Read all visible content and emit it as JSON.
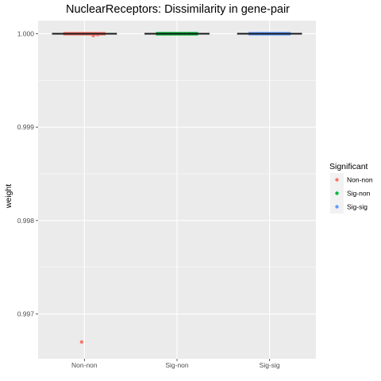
{
  "chart_data": {
    "type": "box",
    "title": "NuclearReceptors: Dissimilarity in gene-pair",
    "xlabel": "",
    "ylabel": "weight",
    "categories": [
      "Non-non",
      "Sig-non",
      "Sig-sig"
    ],
    "ylim": [
      0.99652,
      1.00014
    ],
    "yticks": [
      0.997,
      0.998,
      0.999,
      1.0
    ],
    "ytick_labels": [
      "0.997",
      "0.998",
      "0.999",
      "1.000"
    ],
    "grid": true,
    "legend": {
      "title": "Significant",
      "position": "right",
      "items": [
        {
          "label": "Non-non",
          "color": "#F8766D"
        },
        {
          "label": "Sig-non",
          "color": "#00BA38"
        },
        {
          "label": "Sig-sig",
          "color": "#619CFF"
        }
      ]
    },
    "series": [
      {
        "category": "Non-non",
        "color": "#F8766D",
        "median": 1.0,
        "q1": 1.0,
        "q3": 1.0,
        "whisker_low": 1.0,
        "whisker_high": 1.0,
        "jitter_points": [
          {
            "x_offset": -0.22,
            "y": 1.0
          },
          {
            "x_offset": -0.15,
            "y": 1.0
          },
          {
            "x_offset": -0.08,
            "y": 1.0
          },
          {
            "x_offset": -0.02,
            "y": 1.0
          },
          {
            "x_offset": 0.05,
            "y": 1.0
          },
          {
            "x_offset": 0.1,
            "y": 1.0
          },
          {
            "x_offset": 0.16,
            "y": 0.99998
          },
          {
            "x_offset": 0.2,
            "y": 1.0
          },
          {
            "x_offset": 0.24,
            "y": 0.99999
          }
        ],
        "outliers": [
          {
            "x_offset": -0.05,
            "y": 0.9967
          }
        ]
      },
      {
        "category": "Sig-non",
        "color": "#00BA38",
        "median": 1.0,
        "q1": 1.0,
        "q3": 1.0,
        "whisker_low": 1.0,
        "whisker_high": 1.0,
        "jitter_points": [
          {
            "x_offset": -0.22,
            "y": 1.0
          },
          {
            "x_offset": -0.12,
            "y": 1.0
          },
          {
            "x_offset": -0.03,
            "y": 1.0
          },
          {
            "x_offset": 0.06,
            "y": 1.0
          },
          {
            "x_offset": 0.14,
            "y": 1.0
          },
          {
            "x_offset": 0.22,
            "y": 1.0
          }
        ],
        "outliers": []
      },
      {
        "category": "Sig-sig",
        "color": "#619CFF",
        "median": 1.0,
        "q1": 1.0,
        "q3": 1.0,
        "whisker_low": 1.0,
        "whisker_high": 1.0,
        "jitter_points": [
          {
            "x_offset": -0.22,
            "y": 1.0
          },
          {
            "x_offset": -0.12,
            "y": 1.0
          },
          {
            "x_offset": -0.03,
            "y": 1.0
          },
          {
            "x_offset": 0.06,
            "y": 1.0
          },
          {
            "x_offset": 0.14,
            "y": 1.0
          },
          {
            "x_offset": 0.22,
            "y": 1.0
          }
        ],
        "outliers": []
      }
    ]
  }
}
